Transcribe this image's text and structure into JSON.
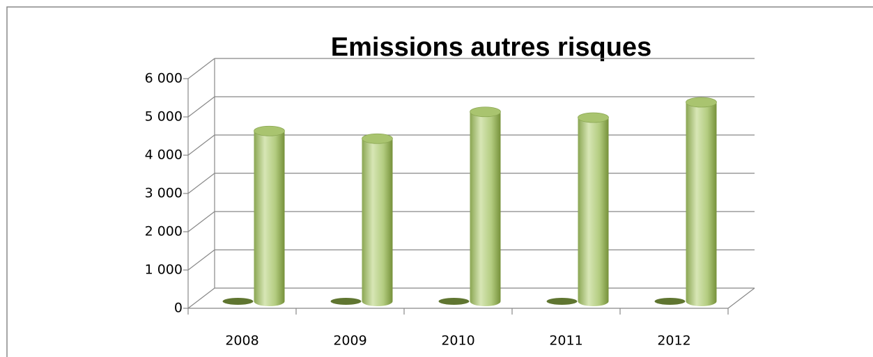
{
  "chart_data": {
    "type": "bar3d",
    "title": "Emissions autres risques",
    "categories": [
      "2008",
      "2009",
      "2010",
      "2011",
      "2012"
    ],
    "series": [
      {
        "color": "#5f7530",
        "values": [
          0,
          0,
          0,
          0,
          0
        ]
      },
      {
        "color": "#9bbb59",
        "values": [
          4450,
          4250,
          4950,
          4800,
          5200
        ]
      }
    ],
    "ylim": [
      0,
      6000
    ],
    "yticks": [
      {
        "value": 0,
        "label": "0"
      },
      {
        "value": 1000,
        "label": "1 000"
      },
      {
        "value": 2000,
        "label": "2 000"
      },
      {
        "value": 3000,
        "label": "3 000"
      },
      {
        "value": 4000,
        "label": "4 000"
      },
      {
        "value": 5000,
        "label": "5 000"
      },
      {
        "value": 6000,
        "label": "6 000"
      }
    ],
    "grid": true
  }
}
